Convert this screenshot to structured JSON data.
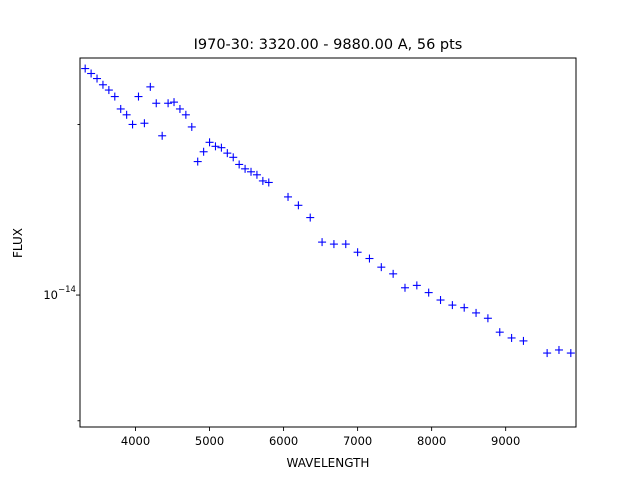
{
  "chart_data": {
    "type": "scatter",
    "title": "I970-30: 3320.00 - 9880.00 A, 56 pts",
    "xlabel": "WAVELENGTH",
    "ylabel": "FLUX",
    "marker": "+",
    "marker_color": "#0000ff",
    "x_scale": "linear",
    "y_scale": "log",
    "xlim": [
      3250,
      9950
    ],
    "ylim": [
      5.85e-15,
      2.62e-14
    ],
    "x_ticks": [
      {
        "value": 4000,
        "label": "4000"
      },
      {
        "value": 5000,
        "label": "5000"
      },
      {
        "value": 6000,
        "label": "6000"
      },
      {
        "value": 7000,
        "label": "7000"
      },
      {
        "value": 8000,
        "label": "8000"
      },
      {
        "value": 9000,
        "label": "9000"
      }
    ],
    "y_ticks": [
      {
        "value": 1e-14,
        "label_base": "10",
        "label_exp": "−14"
      }
    ],
    "y_minor_ticks": [
      6e-15,
      2e-14
    ],
    "grid": false,
    "legend": "none",
    "x": [
      3320,
      3400,
      3480,
      3560,
      3640,
      3720,
      3800,
      3880,
      3960,
      4040,
      4120,
      4200,
      4280,
      4360,
      4440,
      4520,
      4600,
      4680,
      4760,
      4840,
      4920,
      5000,
      5080,
      5160,
      5240,
      5320,
      5400,
      5480,
      5560,
      5640,
      5720,
      5800,
      6060,
      6200,
      6360,
      6520,
      6680,
      6840,
      7000,
      7160,
      7320,
      7480,
      7640,
      7800,
      7960,
      8120,
      8280,
      8440,
      8600,
      8760,
      8920,
      9080,
      9240,
      9560,
      9720,
      9880
    ],
    "y": [
      2.51e-14,
      2.46e-14,
      2.41e-14,
      2.35e-14,
      2.3e-14,
      2.24e-14,
      2.13e-14,
      2.08e-14,
      2e-14,
      2.24e-14,
      2.01e-14,
      2.33e-14,
      2.18e-14,
      1.91e-14,
      2.18e-14,
      2.19e-14,
      2.13e-14,
      2.08e-14,
      1.98e-14,
      1.72e-14,
      1.79e-14,
      1.86e-14,
      1.83e-14,
      1.82e-14,
      1.78e-14,
      1.75e-14,
      1.7e-14,
      1.67e-14,
      1.65e-14,
      1.63e-14,
      1.59e-14,
      1.58e-14,
      1.49e-14,
      1.44e-14,
      1.37e-14,
      1.24e-14,
      1.23e-14,
      1.23e-14,
      1.19e-14,
      1.16e-14,
      1.12e-14,
      1.09e-14,
      1.03e-14,
      1.04e-14,
      1.01e-14,
      9.8e-15,
      9.6e-15,
      9.5e-15,
      9.3e-15,
      9.1e-15,
      8.6e-15,
      8.4e-15,
      8.3e-15,
      7.9e-15,
      8e-15,
      7.9e-15
    ]
  }
}
